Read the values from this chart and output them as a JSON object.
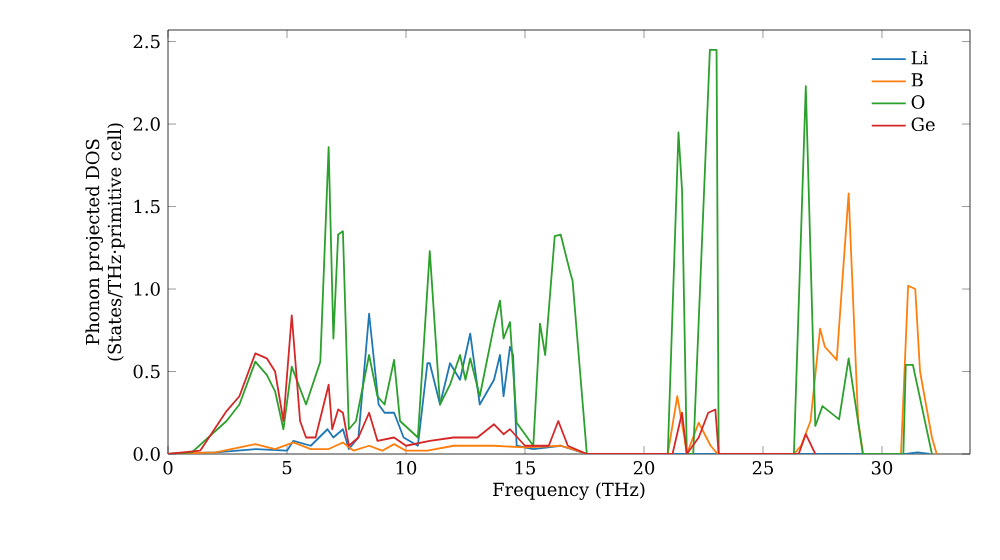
{
  "chart_data": {
    "type": "line",
    "xlabel": "Frequency (THz)",
    "ylabel": "Phonon projected DOS\n(States/THz·primitive cell)",
    "xlim": [
      0,
      33.7
    ],
    "ylim": [
      0,
      2.57
    ],
    "xticks": [
      0,
      5,
      10,
      15,
      20,
      25,
      30
    ],
    "yticks": [
      {
        "value": 0,
        "label": "0.0"
      },
      {
        "value": 0.5,
        "label": "0.5"
      },
      {
        "value": 1,
        "label": "1.0"
      },
      {
        "value": 1.5,
        "label": "1.5"
      },
      {
        "value": 2,
        "label": "2.0"
      },
      {
        "value": 2.5,
        "label": "2.5"
      }
    ],
    "legend": "top right",
    "grid": false,
    "line_style": "solid",
    "series": [
      {
        "name": "Li",
        "color": "#1f77b4",
        "x": [
          0,
          2,
          3.7,
          5.0,
          5.27,
          6.0,
          6.7,
          6.95,
          7.35,
          7.6,
          8.0,
          8.45,
          8.85,
          9.1,
          9.5,
          9.9,
          10.5,
          10.9,
          11.0,
          11.43,
          11.85,
          12.27,
          12.7,
          13.1,
          13.7,
          13.95,
          14.1,
          14.37,
          14.5,
          14.65,
          15.35,
          16.5,
          17.6,
          18.0,
          31.0,
          31.5,
          32.0
        ],
        "values": [
          0,
          0.01,
          0.03,
          0.02,
          0.08,
          0.05,
          0.15,
          0.1,
          0.15,
          0.03,
          0.1,
          0.85,
          0.3,
          0.25,
          0.25,
          0.1,
          0.05,
          0.55,
          0.55,
          0.3,
          0.55,
          0.45,
          0.73,
          0.3,
          0.45,
          0.6,
          0.35,
          0.65,
          0.6,
          0.05,
          0.03,
          0.05,
          0,
          0,
          0,
          0.01,
          0
        ]
      },
      {
        "name": "B",
        "color": "#ff7f0e",
        "x": [
          0,
          2,
          3.67,
          4.5,
          5.27,
          6.0,
          6.75,
          7.35,
          7.8,
          8.45,
          9.0,
          9.5,
          10.0,
          10.9,
          12.0,
          13.7,
          15.0,
          16.5,
          17.0,
          17.6,
          21.0,
          21.4,
          21.7,
          21.8,
          22.3,
          22.8,
          23.1,
          26.3,
          26.6,
          27.0,
          27.4,
          27.6,
          28.1,
          28.6,
          29.0,
          29.2,
          30.8,
          31.1,
          31.4,
          31.6,
          32.1,
          32.3
        ],
        "values": [
          0,
          0.01,
          0.06,
          0.03,
          0.07,
          0.03,
          0.03,
          0.07,
          0.02,
          0.05,
          0.02,
          0.06,
          0.02,
          0.02,
          0.05,
          0.05,
          0.04,
          0.05,
          0.03,
          0,
          0,
          0.35,
          0.1,
          0,
          0.19,
          0.05,
          0,
          0,
          0.05,
          0.2,
          0.76,
          0.65,
          0.57,
          1.58,
          0.2,
          0,
          0,
          1.02,
          1.0,
          0.5,
          0.1,
          0
        ]
      },
      {
        "name": "O",
        "color": "#2ca02c",
        "x": [
          0,
          1,
          2.46,
          3.0,
          3.67,
          4.15,
          4.5,
          4.85,
          5.2,
          5.8,
          6.4,
          6.75,
          6.95,
          7.15,
          7.35,
          7.6,
          7.9,
          8.45,
          8.8,
          9.1,
          9.5,
          9.75,
          10.5,
          11.0,
          11.43,
          11.85,
          12.27,
          12.5,
          12.7,
          13.1,
          13.7,
          13.95,
          14.1,
          14.37,
          14.65,
          15.35,
          15.63,
          15.85,
          16.25,
          16.5,
          16.9,
          17.0,
          17.6,
          21.0,
          21.45,
          21.6,
          21.8,
          22.07,
          22.77,
          23.05,
          23.14,
          26.3,
          26.8,
          27.2,
          27.5,
          28.2,
          28.6,
          29.2,
          30.9,
          31.0,
          31.3,
          32.1
        ],
        "values": [
          0,
          0.01,
          0.2,
          0.3,
          0.56,
          0.48,
          0.38,
          0.15,
          0.53,
          0.3,
          0.56,
          1.86,
          0.7,
          1.33,
          1.35,
          0.15,
          0.2,
          0.6,
          0.35,
          0.3,
          0.57,
          0.2,
          0.1,
          1.23,
          0.3,
          0.42,
          0.6,
          0.45,
          0.58,
          0.35,
          0.78,
          0.93,
          0.7,
          0.8,
          0.19,
          0.05,
          0.79,
          0.6,
          1.32,
          1.33,
          1.1,
          1.05,
          0,
          0,
          1.95,
          1.6,
          0,
          0,
          2.45,
          2.45,
          0,
          0,
          2.23,
          0.17,
          0.29,
          0.21,
          0.58,
          0,
          0,
          0.54,
          0.54,
          0
        ]
      },
      {
        "name": "Ge",
        "color": "#d62728",
        "x": [
          0,
          1.35,
          2.46,
          3.0,
          3.67,
          4.15,
          4.5,
          4.85,
          5.2,
          5.55,
          5.8,
          6.2,
          6.75,
          6.9,
          7.15,
          7.35,
          7.6,
          8.0,
          8.45,
          8.8,
          9.5,
          10.0,
          11.0,
          12.0,
          13.0,
          13.7,
          14.1,
          14.37,
          15.0,
          16.0,
          16.4,
          16.8,
          17.6,
          21.2,
          21.6,
          21.8,
          22.3,
          22.7,
          23.0,
          23.14,
          26.5,
          26.8,
          27.2
        ],
        "values": [
          0,
          0.02,
          0.26,
          0.35,
          0.61,
          0.58,
          0.5,
          0.2,
          0.84,
          0.2,
          0.1,
          0.1,
          0.42,
          0.15,
          0.27,
          0.25,
          0.05,
          0.1,
          0.25,
          0.08,
          0.1,
          0.05,
          0.08,
          0.1,
          0.1,
          0.18,
          0.12,
          0.15,
          0.05,
          0.05,
          0.2,
          0.05,
          0,
          0,
          0.25,
          0,
          0.1,
          0.25,
          0.27,
          0,
          0,
          0.12,
          0
        ]
      }
    ]
  }
}
